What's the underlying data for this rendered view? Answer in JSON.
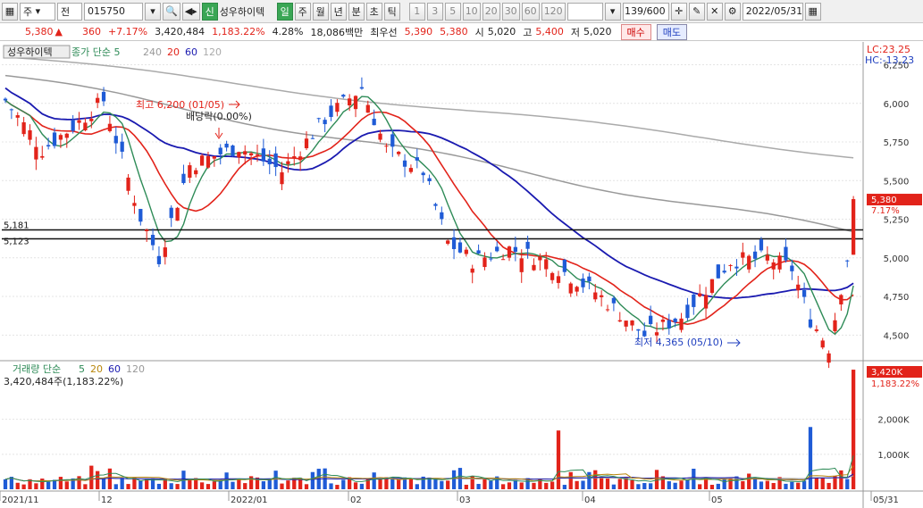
{
  "toolbar": {
    "market": "주",
    "mode": "전",
    "code": "015750",
    "tag_new": "신",
    "stock_name": "성우하이텍",
    "periods": [
      "일",
      "주",
      "월",
      "년",
      "분",
      "초",
      "틱"
    ],
    "active_period": "일",
    "intervals": [
      "1",
      "3",
      "5",
      "10",
      "20",
      "30",
      "60",
      "120"
    ],
    "count": "139/600",
    "date": "2022/05/31"
  },
  "info": {
    "price": "5,380",
    "change": "360",
    "change_pct": "+7.17%",
    "volume": "3,420,484",
    "volume_pct": "1,183.22%",
    "turnover": "4.28%",
    "amount": "18,086백만",
    "best_label": "최우선",
    "ask": "5,390",
    "bid": "5,380",
    "open_label": "시",
    "open": "5,020",
    "high_label": "고",
    "high": "5,400",
    "low_label": "저",
    "low": "5,020",
    "buy_label": "매수",
    "sell_label": "매도"
  },
  "price_legend": {
    "name": "성우하이텍",
    "ma_label": "종가 단순 5",
    "ma": [
      "240",
      "20",
      "60",
      "120"
    ]
  },
  "price_axis": [
    "6,250",
    "6,000",
    "5,750",
    "5,500",
    "5,250",
    "5,000",
    "4,750",
    "4,500"
  ],
  "price_badge": "5,380",
  "price_badge_pct": "7.17%",
  "lc": "LC:23.25",
  "hc": "HC:-13.23",
  "hlines": [
    "5,181",
    "5,123"
  ],
  "annotations": {
    "high_note": "최고 6,200 (01/05)",
    "dividend_note": "배당락(0.00%)",
    "low_note": "최저 4,365 (05/10)"
  },
  "volume_legend": {
    "label": "거래량 단순",
    "ma": [
      "5",
      "20",
      "60",
      "120"
    ],
    "value": "3,420,484주(1,183.22%)"
  },
  "volume_axis": [
    "2,000K",
    "1,000K"
  ],
  "volume_badge": "3,420K",
  "volume_badge_pct": "1,183.22%",
  "date_axis": [
    "2021/11",
    "12",
    "2022/01",
    "02",
    "03",
    "04",
    "05",
    "05/31"
  ],
  "colors": {
    "up": "#e2231a",
    "down": "#1f5bd6",
    "ma5": "#2e8b57",
    "ma20": "#e2231a",
    "ma60": "#1a1ab0",
    "ma120": "#999999"
  }
}
